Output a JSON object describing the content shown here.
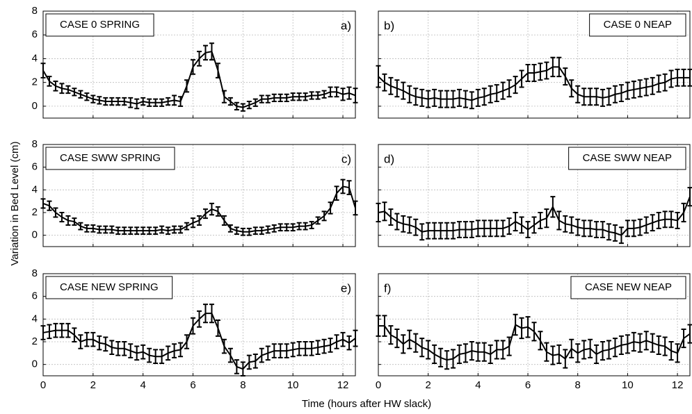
{
  "xlabel": "Time (hours after HW slack)",
  "ylabel": "Variation in Bed Level (cm)",
  "chart_data": [
    {
      "type": "line",
      "label": "CASE 0 SPRING",
      "panel": "a)",
      "color": "#000000",
      "grid": true,
      "xlim": [
        0,
        12.5
      ],
      "ylim": [
        -1,
        8
      ],
      "xticks": [
        0,
        2,
        4,
        6,
        8,
        10,
        12
      ],
      "yticks": [
        0,
        2,
        4,
        6,
        8
      ],
      "x": [
        0,
        0.25,
        0.5,
        0.75,
        1,
        1.25,
        1.5,
        1.75,
        2,
        2.25,
        2.5,
        2.75,
        3,
        3.25,
        3.5,
        3.75,
        4,
        4.25,
        4.5,
        4.75,
        5,
        5.25,
        5.5,
        5.75,
        6,
        6.25,
        6.5,
        6.75,
        7,
        7.25,
        7.5,
        7.75,
        8,
        8.25,
        8.5,
        8.75,
        9,
        9.25,
        9.5,
        9.75,
        10,
        10.25,
        10.5,
        10.75,
        11,
        11.25,
        11.5,
        11.75,
        12,
        12.25,
        12.5
      ],
      "values": [
        3.0,
        2.1,
        1.7,
        1.5,
        1.4,
        1.2,
        1.0,
        0.8,
        0.6,
        0.5,
        0.4,
        0.4,
        0.4,
        0.4,
        0.3,
        0.2,
        0.4,
        0.3,
        0.3,
        0.3,
        0.4,
        0.5,
        0.4,
        1.7,
        3.3,
        4.0,
        4.5,
        4.6,
        3.0,
        0.8,
        0.4,
        0.0,
        -0.1,
        0.1,
        0.3,
        0.6,
        0.6,
        0.7,
        0.7,
        0.7,
        0.8,
        0.8,
        0.8,
        0.9,
        0.9,
        1.0,
        1.2,
        1.2,
        1.0,
        1.1,
        0.9
      ],
      "errors": [
        0.6,
        0.4,
        0.4,
        0.4,
        0.3,
        0.3,
        0.3,
        0.3,
        0.3,
        0.3,
        0.3,
        0.3,
        0.3,
        0.3,
        0.4,
        0.4,
        0.3,
        0.3,
        0.3,
        0.3,
        0.3,
        0.4,
        0.4,
        0.5,
        0.6,
        0.6,
        0.6,
        0.7,
        0.6,
        0.5,
        0.3,
        0.3,
        0.3,
        0.3,
        0.3,
        0.3,
        0.3,
        0.3,
        0.3,
        0.3,
        0.3,
        0.3,
        0.3,
        0.3,
        0.3,
        0.3,
        0.4,
        0.4,
        0.5,
        0.5,
        0.6
      ]
    },
    {
      "type": "line",
      "label": "CASE 0 NEAP",
      "panel": "b)",
      "color": "#000000",
      "grid": true,
      "xlim": [
        0,
        12.5
      ],
      "ylim": [
        -1,
        8
      ],
      "xticks": [
        0,
        2,
        4,
        6,
        8,
        10,
        12
      ],
      "yticks": [
        0,
        2,
        4,
        6,
        8
      ],
      "x": [
        0,
        0.25,
        0.5,
        0.75,
        1,
        1.25,
        1.5,
        1.75,
        2,
        2.25,
        2.5,
        2.75,
        3,
        3.25,
        3.5,
        3.75,
        4,
        4.25,
        4.5,
        4.75,
        5,
        5.25,
        5.5,
        5.75,
        6,
        6.25,
        6.5,
        6.75,
        7,
        7.25,
        7.5,
        7.75,
        8,
        8.25,
        8.5,
        8.75,
        9,
        9.25,
        9.5,
        9.75,
        10,
        10.25,
        10.5,
        10.75,
        11,
        11.25,
        11.5,
        11.75,
        12,
        12.25,
        12.5
      ],
      "values": [
        2.5,
        2.0,
        1.7,
        1.5,
        1.3,
        1.0,
        0.8,
        0.7,
        0.6,
        0.7,
        0.6,
        0.6,
        0.6,
        0.7,
        0.6,
        0.5,
        0.7,
        0.8,
        1.0,
        1.1,
        1.3,
        1.5,
        1.8,
        2.3,
        2.8,
        2.8,
        2.9,
        3.0,
        3.3,
        3.3,
        2.5,
        1.5,
        1.0,
        0.8,
        0.8,
        0.8,
        0.7,
        0.8,
        1.0,
        1.1,
        1.3,
        1.4,
        1.5,
        1.6,
        1.7,
        1.9,
        2.0,
        2.3,
        2.4,
        2.4,
        2.4
      ],
      "errors": [
        0.9,
        0.7,
        0.7,
        0.7,
        0.7,
        0.7,
        0.7,
        0.7,
        0.7,
        0.7,
        0.7,
        0.7,
        0.7,
        0.7,
        0.7,
        0.7,
        0.7,
        0.7,
        0.7,
        0.7,
        0.7,
        0.7,
        0.7,
        0.7,
        0.7,
        0.7,
        0.7,
        0.7,
        0.8,
        0.8,
        0.7,
        0.7,
        0.7,
        0.7,
        0.7,
        0.7,
        0.7,
        0.7,
        0.7,
        0.7,
        0.7,
        0.7,
        0.7,
        0.7,
        0.7,
        0.7,
        0.7,
        0.7,
        0.7,
        0.7,
        0.7
      ]
    },
    {
      "type": "line",
      "label": "CASE SWW SPRING",
      "panel": "c)",
      "color": "#000000",
      "grid": true,
      "xlim": [
        0,
        12.5
      ],
      "ylim": [
        -1,
        8
      ],
      "xticks": [
        0,
        2,
        4,
        6,
        8,
        10,
        12
      ],
      "yticks": [
        0,
        2,
        4,
        6,
        8
      ],
      "x": [
        0,
        0.25,
        0.5,
        0.75,
        1,
        1.25,
        1.5,
        1.75,
        2,
        2.25,
        2.5,
        2.75,
        3,
        3.25,
        3.5,
        3.75,
        4,
        4.25,
        4.5,
        4.75,
        5,
        5.25,
        5.5,
        5.75,
        6,
        6.25,
        6.5,
        6.75,
        7,
        7.25,
        7.5,
        7.75,
        8,
        8.25,
        8.5,
        8.75,
        9,
        9.25,
        9.5,
        9.75,
        10,
        10.25,
        10.5,
        10.75,
        11,
        11.25,
        11.5,
        11.75,
        12,
        12.25,
        12.5
      ],
      "values": [
        2.8,
        2.6,
        2.0,
        1.6,
        1.3,
        1.2,
        0.8,
        0.6,
        0.6,
        0.5,
        0.5,
        0.5,
        0.4,
        0.4,
        0.4,
        0.4,
        0.4,
        0.4,
        0.4,
        0.5,
        0.4,
        0.5,
        0.5,
        0.8,
        1.1,
        1.3,
        1.9,
        2.3,
        2.1,
        1.3,
        0.6,
        0.4,
        0.3,
        0.3,
        0.4,
        0.4,
        0.5,
        0.6,
        0.7,
        0.7,
        0.7,
        0.8,
        0.8,
        0.9,
        1.3,
        1.7,
        2.4,
        3.7,
        4.3,
        4.2,
        2.4
      ],
      "errors": [
        0.4,
        0.4,
        0.4,
        0.4,
        0.4,
        0.3,
        0.3,
        0.3,
        0.3,
        0.3,
        0.3,
        0.3,
        0.3,
        0.3,
        0.3,
        0.3,
        0.3,
        0.3,
        0.3,
        0.3,
        0.3,
        0.3,
        0.3,
        0.3,
        0.4,
        0.4,
        0.4,
        0.5,
        0.4,
        0.4,
        0.3,
        0.3,
        0.3,
        0.3,
        0.3,
        0.3,
        0.3,
        0.3,
        0.3,
        0.3,
        0.3,
        0.3,
        0.3,
        0.3,
        0.3,
        0.4,
        0.5,
        0.6,
        0.6,
        0.6,
        0.6
      ]
    },
    {
      "type": "line",
      "label": "CASE SWW NEAP",
      "panel": "d)",
      "color": "#000000",
      "grid": true,
      "xlim": [
        0,
        12.5
      ],
      "ylim": [
        -1,
        8
      ],
      "xticks": [
        0,
        2,
        4,
        6,
        8,
        10,
        12
      ],
      "yticks": [
        0,
        2,
        4,
        6,
        8
      ],
      "x": [
        0,
        0.25,
        0.5,
        0.75,
        1,
        1.25,
        1.5,
        1.75,
        2,
        2.25,
        2.5,
        2.75,
        3,
        3.25,
        3.5,
        3.75,
        4,
        4.25,
        4.5,
        4.75,
        5,
        5.25,
        5.5,
        5.75,
        6,
        6.25,
        6.5,
        6.75,
        7,
        7.25,
        7.5,
        7.75,
        8,
        8.25,
        8.5,
        8.75,
        9,
        9.25,
        9.5,
        9.75,
        10,
        10.25,
        10.5,
        10.75,
        11,
        11.25,
        11.5,
        11.75,
        12,
        12.25,
        12.5
      ],
      "values": [
        2.0,
        2.1,
        1.6,
        1.2,
        1.0,
        0.9,
        0.7,
        0.3,
        0.4,
        0.4,
        0.4,
        0.4,
        0.4,
        0.5,
        0.5,
        0.5,
        0.6,
        0.6,
        0.6,
        0.6,
        0.6,
        0.8,
        1.2,
        0.9,
        0.5,
        0.9,
        1.3,
        1.5,
        2.5,
        1.3,
        1.0,
        0.9,
        0.7,
        0.6,
        0.6,
        0.5,
        0.5,
        0.3,
        0.2,
        0.0,
        0.6,
        0.6,
        0.7,
        0.9,
        1.1,
        1.3,
        1.4,
        1.4,
        1.3,
        2.0,
        3.4
      ],
      "errors": [
        0.8,
        0.8,
        0.7,
        0.7,
        0.7,
        0.7,
        0.7,
        0.7,
        0.7,
        0.7,
        0.7,
        0.7,
        0.7,
        0.7,
        0.7,
        0.7,
        0.7,
        0.7,
        0.7,
        0.7,
        0.7,
        0.7,
        0.8,
        0.7,
        0.7,
        0.7,
        0.7,
        0.8,
        0.9,
        0.8,
        0.7,
        0.7,
        0.7,
        0.7,
        0.7,
        0.7,
        0.7,
        0.7,
        0.7,
        0.7,
        0.7,
        0.7,
        0.7,
        0.7,
        0.7,
        0.7,
        0.7,
        0.7,
        0.7,
        0.8,
        0.8
      ]
    },
    {
      "type": "line",
      "label": "CASE NEW SPRING",
      "panel": "e)",
      "color": "#000000",
      "grid": true,
      "xlim": [
        0,
        12.5
      ],
      "ylim": [
        -1,
        8
      ],
      "xticks": [
        0,
        2,
        4,
        6,
        8,
        10,
        12
      ],
      "yticks": [
        0,
        2,
        4,
        6,
        8
      ],
      "x": [
        0,
        0.25,
        0.5,
        0.75,
        1,
        1.25,
        1.5,
        1.75,
        2,
        2.25,
        2.5,
        2.75,
        3,
        3.25,
        3.5,
        3.75,
        4,
        4.25,
        4.5,
        4.75,
        5,
        5.25,
        5.5,
        5.75,
        6,
        6.25,
        6.5,
        6.75,
        7,
        7.25,
        7.5,
        7.75,
        8,
        8.25,
        8.5,
        8.75,
        9,
        9.25,
        9.5,
        9.75,
        10,
        10.25,
        10.5,
        10.75,
        11,
        11.25,
        11.5,
        11.75,
        12,
        12.25,
        12.5
      ],
      "values": [
        2.8,
        2.9,
        3.0,
        3.0,
        3.0,
        2.6,
        2.0,
        2.2,
        2.2,
        1.9,
        1.8,
        1.5,
        1.4,
        1.4,
        1.2,
        1.0,
        1.1,
        0.8,
        0.7,
        0.7,
        1.0,
        1.2,
        1.3,
        2.0,
        3.4,
        4.0,
        4.5,
        4.5,
        3.2,
        1.6,
        0.8,
        -0.2,
        -0.4,
        0.2,
        0.3,
        0.8,
        1.0,
        1.2,
        1.2,
        1.2,
        1.3,
        1.4,
        1.4,
        1.4,
        1.5,
        1.6,
        1.7,
        2.0,
        2.2,
        1.9,
        2.3
      ],
      "errors": [
        0.6,
        0.6,
        0.6,
        0.6,
        0.6,
        0.6,
        0.6,
        0.6,
        0.6,
        0.6,
        0.6,
        0.6,
        0.6,
        0.6,
        0.6,
        0.6,
        0.6,
        0.6,
        0.6,
        0.6,
        0.6,
        0.6,
        0.6,
        0.6,
        0.7,
        0.7,
        0.8,
        0.8,
        0.7,
        0.6,
        0.6,
        0.6,
        0.6,
        0.6,
        0.6,
        0.6,
        0.6,
        0.6,
        0.6,
        0.6,
        0.6,
        0.6,
        0.6,
        0.6,
        0.6,
        0.6,
        0.6,
        0.6,
        0.6,
        0.6,
        0.7
      ]
    },
    {
      "type": "line",
      "label": "CASE NEW NEAP",
      "panel": "f)",
      "color": "#000000",
      "grid": true,
      "xlim": [
        0,
        12.5
      ],
      "ylim": [
        -1,
        8
      ],
      "xticks": [
        0,
        2,
        4,
        6,
        8,
        10,
        12
      ],
      "yticks": [
        0,
        2,
        4,
        6,
        8
      ],
      "x": [
        0,
        0.25,
        0.5,
        0.75,
        1,
        1.25,
        1.5,
        1.75,
        2,
        2.25,
        2.5,
        2.75,
        3,
        3.25,
        3.5,
        3.75,
        4,
        4.25,
        4.5,
        4.75,
        5,
        5.25,
        5.5,
        5.75,
        6,
        6.25,
        6.5,
        6.75,
        7,
        7.25,
        7.5,
        7.75,
        8,
        8.25,
        8.5,
        8.75,
        9,
        9.25,
        9.5,
        9.75,
        10,
        10.25,
        10.5,
        10.75,
        11,
        11.25,
        11.5,
        11.75,
        12,
        12.25,
        12.5
      ],
      "values": [
        3.4,
        3.4,
        2.6,
        2.3,
        1.8,
        2.2,
        1.9,
        1.5,
        1.3,
        0.9,
        0.6,
        0.4,
        0.5,
        0.9,
        1.0,
        1.2,
        1.1,
        1.1,
        0.9,
        1.3,
        1.3,
        1.6,
        3.5,
        3.2,
        3.3,
        2.9,
        2.1,
        1.1,
        0.8,
        0.9,
        0.5,
        1.4,
        1.0,
        1.3,
        1.4,
        0.9,
        1.2,
        1.3,
        1.5,
        1.7,
        1.8,
        2.0,
        1.9,
        2.1,
        1.9,
        1.7,
        1.6,
        1.2,
        1.0,
        2.3,
        2.7
      ],
      "errors": [
        0.9,
        0.9,
        0.8,
        0.8,
        0.8,
        0.8,
        0.8,
        0.8,
        0.8,
        0.8,
        0.8,
        0.8,
        0.8,
        0.8,
        0.8,
        0.8,
        0.8,
        0.8,
        0.8,
        0.8,
        0.8,
        0.8,
        0.9,
        0.9,
        0.9,
        0.8,
        0.8,
        0.8,
        0.8,
        0.8,
        0.8,
        0.8,
        0.8,
        0.8,
        0.8,
        0.8,
        0.8,
        0.8,
        0.8,
        0.8,
        0.8,
        0.8,
        0.8,
        0.8,
        0.8,
        0.8,
        0.8,
        0.8,
        0.8,
        0.8,
        0.8
      ]
    }
  ]
}
